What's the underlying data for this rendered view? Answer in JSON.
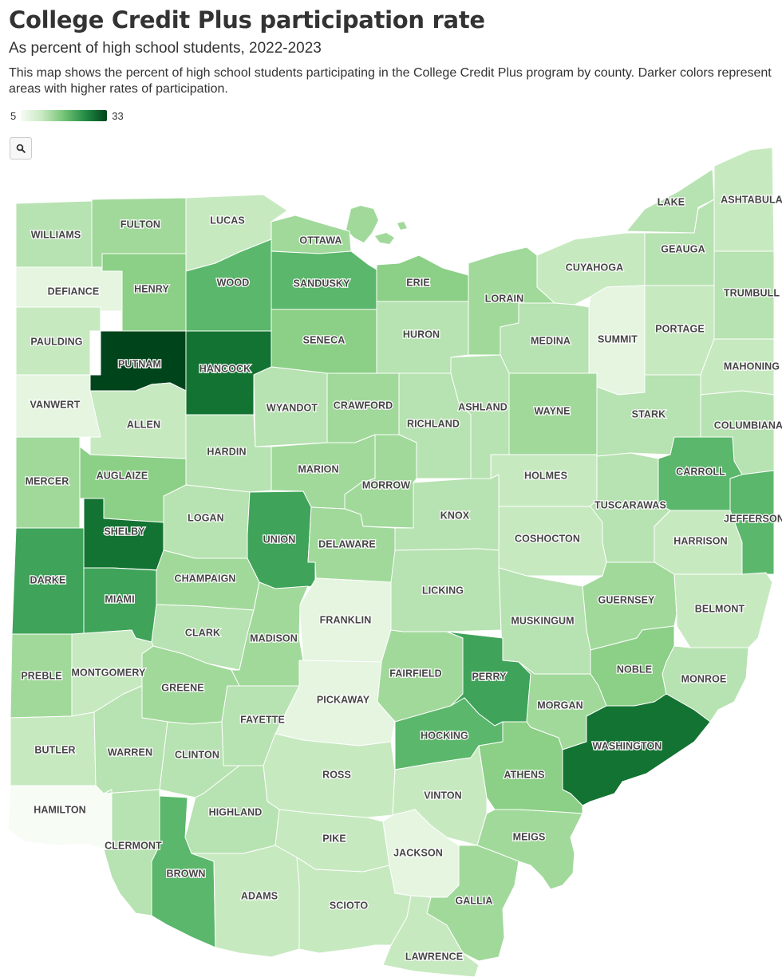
{
  "title": "College Credit Plus participation rate",
  "subtitle": "As percent of high school students, 2022-2023",
  "description": "This map shows the percent of high school students participating in the College Credit Plus program by county. Darker colors represent areas with higher rates of participation.",
  "legend": {
    "min": "5",
    "max": "33"
  },
  "colors": {
    "lightest": "#f7fcf5",
    "light": "#c7e9c0",
    "mid": "#74c476",
    "dark": "#238b45",
    "darkest": "#00441b"
  },
  "zoom_icon": "magnifier-icon",
  "counties": [
    {
      "name": "WILLIAMS",
      "level": 3
    },
    {
      "name": "FULTON",
      "level": 4
    },
    {
      "name": "LUCAS",
      "level": 2
    },
    {
      "name": "OTTAWA",
      "level": 4
    },
    {
      "name": "LAKE",
      "level": 3
    },
    {
      "name": "ASHTABULA",
      "level": 2
    },
    {
      "name": "DEFIANCE",
      "level": 1
    },
    {
      "name": "HENRY",
      "level": 5
    },
    {
      "name": "WOOD",
      "level": 6
    },
    {
      "name": "SANDUSKY",
      "level": 6
    },
    {
      "name": "ERIE",
      "level": 5
    },
    {
      "name": "LORAIN",
      "level": 4
    },
    {
      "name": "CUYAHOGA",
      "level": 2
    },
    {
      "name": "GEAUGA",
      "level": 3
    },
    {
      "name": "TRUMBULL",
      "level": 3
    },
    {
      "name": "PAULDING",
      "level": 2
    },
    {
      "name": "PUTNAM",
      "level": 9
    },
    {
      "name": "HANCOCK",
      "level": 8
    },
    {
      "name": "SENECA",
      "level": 5
    },
    {
      "name": "HURON",
      "level": 3
    },
    {
      "name": "MEDINA",
      "level": 3
    },
    {
      "name": "SUMMIT",
      "level": 1
    },
    {
      "name": "PORTAGE",
      "level": 2
    },
    {
      "name": "MAHONING",
      "level": 2
    },
    {
      "name": "VANWERT",
      "level": 1
    },
    {
      "name": "ALLEN",
      "level": 2
    },
    {
      "name": "WYANDOT",
      "level": 3
    },
    {
      "name": "CRAWFORD",
      "level": 4
    },
    {
      "name": "RICHLAND",
      "level": 3
    },
    {
      "name": "ASHLAND",
      "level": 3
    },
    {
      "name": "WAYNE",
      "level": 4
    },
    {
      "name": "STARK",
      "level": 3
    },
    {
      "name": "COLUMBIANA",
      "level": 3
    },
    {
      "name": "MERCER",
      "level": 4
    },
    {
      "name": "AUGLAIZE",
      "level": 5
    },
    {
      "name": "HARDIN",
      "level": 3
    },
    {
      "name": "MARION",
      "level": 4
    },
    {
      "name": "MORROW",
      "level": 4
    },
    {
      "name": "HOLMES",
      "level": 2
    },
    {
      "name": "CARROLL",
      "level": 6
    },
    {
      "name": "TUSCARAWAS",
      "level": 3
    },
    {
      "name": "JEFFERSON",
      "level": 6
    },
    {
      "name": "SHELBY",
      "level": 8
    },
    {
      "name": "LOGAN",
      "level": 3
    },
    {
      "name": "UNION",
      "level": 7
    },
    {
      "name": "DELAWARE",
      "level": 4
    },
    {
      "name": "KNOX",
      "level": 3
    },
    {
      "name": "COSHOCTON",
      "level": 2
    },
    {
      "name": "HARRISON",
      "level": 2
    },
    {
      "name": "DARKE",
      "level": 7
    },
    {
      "name": "MIAMI",
      "level": 7
    },
    {
      "name": "CHAMPAIGN",
      "level": 4
    },
    {
      "name": "LICKING",
      "level": 3
    },
    {
      "name": "GUERNSEY",
      "level": 4
    },
    {
      "name": "BELMONT",
      "level": 2
    },
    {
      "name": "FRANKLIN",
      "level": 1
    },
    {
      "name": "CLARK",
      "level": 3
    },
    {
      "name": "MADISON",
      "level": 4
    },
    {
      "name": "MUSKINGUM",
      "level": 3
    },
    {
      "name": "NOBLE",
      "level": 5
    },
    {
      "name": "PREBLE",
      "level": 4
    },
    {
      "name": "MONTGOMERY",
      "level": 2
    },
    {
      "name": "GREENE",
      "level": 4
    },
    {
      "name": "FAIRFIELD",
      "level": 4
    },
    {
      "name": "PERRY",
      "level": 7
    },
    {
      "name": "MONROE",
      "level": 3
    },
    {
      "name": "PICKAWAY",
      "level": 1
    },
    {
      "name": "FAYETTE",
      "level": 3
    },
    {
      "name": "MORGAN",
      "level": 4
    },
    {
      "name": "BUTLER",
      "level": 2
    },
    {
      "name": "WARREN",
      "level": 3
    },
    {
      "name": "CLINTON",
      "level": 3
    },
    {
      "name": "HOCKING",
      "level": 6
    },
    {
      "name": "WASHINGTON",
      "level": 8
    },
    {
      "name": "ROSS",
      "level": 2
    },
    {
      "name": "VINTON",
      "level": 2
    },
    {
      "name": "ATHENS",
      "level": 5
    },
    {
      "name": "HAMILTON",
      "level": 0
    },
    {
      "name": "HIGHLAND",
      "level": 3
    },
    {
      "name": "CLERMONT",
      "level": 3
    },
    {
      "name": "PIKE",
      "level": 2
    },
    {
      "name": "JACKSON",
      "level": 1
    },
    {
      "name": "MEIGS",
      "level": 4
    },
    {
      "name": "BROWN",
      "level": 6
    },
    {
      "name": "ADAMS",
      "level": 2
    },
    {
      "name": "SCIOTO",
      "level": 2
    },
    {
      "name": "GALLIA",
      "level": 4
    },
    {
      "name": "LAWRENCE",
      "level": 2
    }
  ]
}
